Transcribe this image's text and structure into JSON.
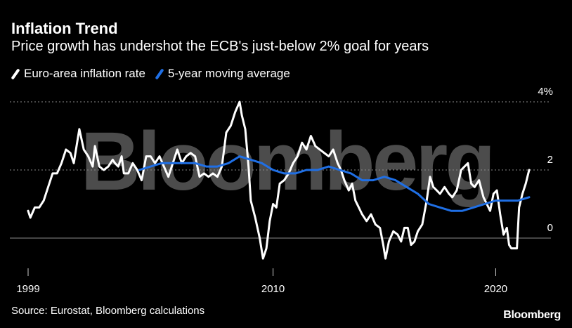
{
  "header": {
    "title": "Inflation Trend",
    "subtitle": "Price growth has undershot the ECB's just-below 2% goal for years"
  },
  "footer": {
    "source": "Source: Eurostat, Bloomberg calculations",
    "logo": "Bloomberg"
  },
  "colors": {
    "background": "#000000",
    "inflation": "#ffffff",
    "moving_average": "#1f6fe5",
    "gridline": "#8a8a8a",
    "watermark": "#5a5a5a"
  },
  "chart_data": {
    "type": "line",
    "title": "Inflation Trend",
    "subtitle": "Price growth has undershot the ECB's just-below 2% goal for years",
    "watermark": "Bloomberg",
    "xlabel": "",
    "ylabel": "",
    "x_tick_labels": [
      "1999",
      "2010",
      "2020"
    ],
    "x_ticks": [
      1999,
      2010,
      2020
    ],
    "y_tick_labels": [
      "4%",
      "2",
      "0"
    ],
    "y_ticks": [
      4,
      2,
      0
    ],
    "xlim": [
      1999,
      2021.5
    ],
    "ylim": [
      -0.8,
      4.4
    ],
    "grid": "horizontal dotted lines at 4, 2 and 0",
    "legend_position": "top-left",
    "series": [
      {
        "name": "Euro-area inflation rate",
        "color": "#ffffff",
        "points": [
          [
            1999.0,
            0.8
          ],
          [
            1999.1,
            0.6
          ],
          [
            1999.3,
            0.9
          ],
          [
            1999.5,
            0.9
          ],
          [
            1999.7,
            1.1
          ],
          [
            1999.9,
            1.5
          ],
          [
            2000.1,
            1.9
          ],
          [
            2000.3,
            1.9
          ],
          [
            2000.5,
            2.2
          ],
          [
            2000.7,
            2.6
          ],
          [
            2000.9,
            2.5
          ],
          [
            2001.05,
            2.2
          ],
          [
            2001.3,
            3.2
          ],
          [
            2001.5,
            2.6
          ],
          [
            2001.7,
            2.4
          ],
          [
            2001.9,
            2.1
          ],
          [
            2002.0,
            2.7
          ],
          [
            2002.2,
            2.1
          ],
          [
            2002.4,
            2.0
          ],
          [
            2002.6,
            2.1
          ],
          [
            2002.8,
            2.3
          ],
          [
            2002.9,
            2.2
          ],
          [
            2003.05,
            2.1
          ],
          [
            2003.2,
            2.4
          ],
          [
            2003.3,
            1.9
          ],
          [
            2003.5,
            1.9
          ],
          [
            2003.7,
            2.2
          ],
          [
            2003.9,
            2.0
          ],
          [
            2004.1,
            1.7
          ],
          [
            2004.3,
            2.4
          ],
          [
            2004.5,
            2.4
          ],
          [
            2004.7,
            2.2
          ],
          [
            2004.9,
            2.4
          ],
          [
            2005.1,
            2.1
          ],
          [
            2005.3,
            1.8
          ],
          [
            2005.5,
            2.2
          ],
          [
            2005.7,
            2.6
          ],
          [
            2005.9,
            2.2
          ],
          [
            2006.1,
            2.4
          ],
          [
            2006.3,
            2.5
          ],
          [
            2006.5,
            2.4
          ],
          [
            2006.7,
            1.8
          ],
          [
            2006.9,
            1.9
          ],
          [
            2007.1,
            1.8
          ],
          [
            2007.3,
            1.9
          ],
          [
            2007.5,
            1.8
          ],
          [
            2007.7,
            2.1
          ],
          [
            2007.8,
            2.6
          ],
          [
            2007.9,
            3.1
          ],
          [
            2008.1,
            3.3
          ],
          [
            2008.3,
            3.7
          ],
          [
            2008.5,
            4.0
          ],
          [
            2008.6,
            3.6
          ],
          [
            2008.75,
            3.2
          ],
          [
            2008.9,
            2.1
          ],
          [
            2009.0,
            1.1
          ],
          [
            2009.2,
            0.6
          ],
          [
            2009.4,
            0.0
          ],
          [
            2009.55,
            -0.6
          ],
          [
            2009.7,
            -0.3
          ],
          [
            2009.85,
            0.5
          ],
          [
            2010.0,
            1.0
          ],
          [
            2010.15,
            0.9
          ],
          [
            2010.3,
            1.6
          ],
          [
            2010.5,
            1.7
          ],
          [
            2010.7,
            1.9
          ],
          [
            2010.9,
            2.2
          ],
          [
            2011.1,
            2.4
          ],
          [
            2011.3,
            2.8
          ],
          [
            2011.5,
            2.6
          ],
          [
            2011.7,
            3.0
          ],
          [
            2011.9,
            2.7
          ],
          [
            2012.1,
            2.6
          ],
          [
            2012.3,
            2.5
          ],
          [
            2012.5,
            2.4
          ],
          [
            2012.7,
            2.6
          ],
          [
            2012.9,
            2.2
          ],
          [
            2013.05,
            2.0
          ],
          [
            2013.2,
            1.7
          ],
          [
            2013.4,
            1.4
          ],
          [
            2013.55,
            1.6
          ],
          [
            2013.7,
            1.1
          ],
          [
            2013.85,
            0.9
          ],
          [
            2014.0,
            0.7
          ],
          [
            2014.2,
            0.5
          ],
          [
            2014.4,
            0.7
          ],
          [
            2014.6,
            0.4
          ],
          [
            2014.8,
            0.3
          ],
          [
            2014.95,
            -0.2
          ],
          [
            2015.05,
            -0.6
          ],
          [
            2015.2,
            -0.1
          ],
          [
            2015.4,
            0.2
          ],
          [
            2015.6,
            0.1
          ],
          [
            2015.75,
            -0.1
          ],
          [
            2015.9,
            0.3
          ],
          [
            2016.05,
            0.3
          ],
          [
            2016.2,
            -0.2
          ],
          [
            2016.35,
            -0.1
          ],
          [
            2016.5,
            0.2
          ],
          [
            2016.7,
            0.4
          ],
          [
            2016.9,
            1.1
          ],
          [
            2017.05,
            1.8
          ],
          [
            2017.2,
            1.5
          ],
          [
            2017.35,
            1.4
          ],
          [
            2017.5,
            1.3
          ],
          [
            2017.7,
            1.5
          ],
          [
            2017.9,
            1.3
          ],
          [
            2018.05,
            1.2
          ],
          [
            2018.25,
            1.4
          ],
          [
            2018.45,
            2.0
          ],
          [
            2018.6,
            2.1
          ],
          [
            2018.75,
            2.2
          ],
          [
            2018.9,
            1.6
          ],
          [
            2019.05,
            1.5
          ],
          [
            2019.25,
            1.7
          ],
          [
            2019.45,
            1.2
          ],
          [
            2019.6,
            1.0
          ],
          [
            2019.75,
            0.8
          ],
          [
            2019.9,
            1.3
          ],
          [
            2020.05,
            1.4
          ],
          [
            2020.2,
            0.7
          ],
          [
            2020.35,
            0.1
          ],
          [
            2020.5,
            0.3
          ],
          [
            2020.6,
            -0.2
          ],
          [
            2020.7,
            -0.3
          ],
          [
            2020.85,
            -0.3
          ],
          [
            2020.95,
            -0.3
          ],
          [
            2021.05,
            0.9
          ],
          [
            2021.2,
            1.3
          ],
          [
            2021.35,
            1.6
          ],
          [
            2021.5,
            2.0
          ]
        ]
      },
      {
        "name": "5-year moving average",
        "color": "#1f6fe5",
        "points": [
          [
            2004.0,
            2.0
          ],
          [
            2004.5,
            2.1
          ],
          [
            2005.0,
            2.2
          ],
          [
            2005.5,
            2.2
          ],
          [
            2006.0,
            2.2
          ],
          [
            2006.5,
            2.2
          ],
          [
            2007.0,
            2.1
          ],
          [
            2007.5,
            2.1
          ],
          [
            2008.0,
            2.2
          ],
          [
            2008.5,
            2.4
          ],
          [
            2009.0,
            2.3
          ],
          [
            2009.5,
            2.2
          ],
          [
            2010.0,
            2.0
          ],
          [
            2010.5,
            1.9
          ],
          [
            2011.0,
            1.9
          ],
          [
            2011.5,
            2.0
          ],
          [
            2012.0,
            2.0
          ],
          [
            2012.5,
            2.1
          ],
          [
            2013.0,
            2.0
          ],
          [
            2013.5,
            1.9
          ],
          [
            2014.0,
            1.7
          ],
          [
            2014.5,
            1.7
          ],
          [
            2015.0,
            1.8
          ],
          [
            2015.5,
            1.7
          ],
          [
            2016.0,
            1.5
          ],
          [
            2016.5,
            1.3
          ],
          [
            2017.0,
            1.0
          ],
          [
            2017.5,
            0.9
          ],
          [
            2018.0,
            0.8
          ],
          [
            2018.5,
            0.8
          ],
          [
            2019.0,
            0.9
          ],
          [
            2019.5,
            1.0
          ],
          [
            2020.0,
            1.1
          ],
          [
            2020.5,
            1.1
          ],
          [
            2021.0,
            1.1
          ],
          [
            2021.5,
            1.2
          ]
        ]
      }
    ]
  }
}
